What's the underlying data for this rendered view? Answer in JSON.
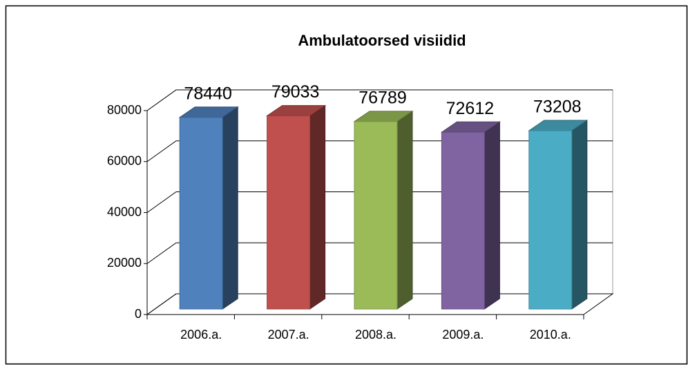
{
  "chart_data": {
    "type": "bar3d",
    "title": "Ambulatoorsed visiidid",
    "categories": [
      "2006.a.",
      "2007.a.",
      "2008.a.",
      "2009.a.",
      "2010.a."
    ],
    "values": [
      78440,
      79033,
      76789,
      72612,
      73208
    ],
    "colors": [
      "#4f81bd",
      "#c0504d",
      "#9bbb59",
      "#8064a2",
      "#4bacc6"
    ],
    "ylim": [
      0,
      80000
    ],
    "yticks": [
      0,
      20000,
      40000,
      60000,
      80000
    ],
    "grid": true
  }
}
